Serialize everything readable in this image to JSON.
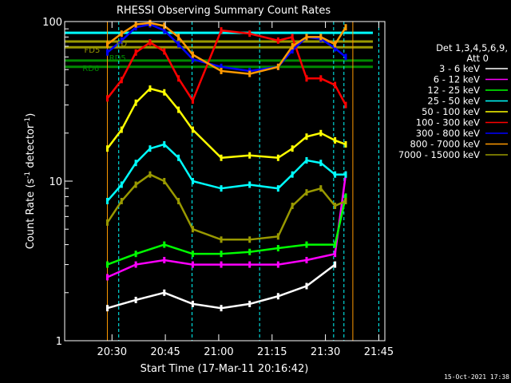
{
  "chart_data": {
    "type": "line",
    "title": "RHESSI Observing Summary Count Rates",
    "xlabel": "Start Time (17-Mar-11 20:16:42)",
    "ylabel_main": "Count Rate (s",
    "ylabel_sup1": "-1",
    "ylabel_mid": " detector",
    "ylabel_sup2": "-1",
    "ylabel_end": ")",
    "yscale": "log",
    "ylim": [
      1,
      100
    ],
    "xlim_minutes_after_start": [
      0,
      90
    ],
    "x_ticks": [
      {
        "label": "20:30",
        "minute": 13.3
      },
      {
        "label": "20:45",
        "minute": 28.3
      },
      {
        "label": "21:00",
        "minute": 43.3
      },
      {
        "label": "21:15",
        "minute": 58.3
      },
      {
        "label": "21:30",
        "minute": 73.3
      },
      {
        "label": "21:45",
        "minute": 88.3
      }
    ],
    "y_ticks": [
      {
        "label": "100",
        "value": 100
      },
      {
        "label": "10",
        "value": 10
      },
      {
        "label": "1",
        "value": 1
      }
    ],
    "legend_header": [
      "Det 1,3,4,5,6,9,",
      "Att 0"
    ],
    "series": [
      {
        "name": "3 - 6 keV",
        "color": "#ffffff",
        "x": [
          12,
          20,
          28,
          36,
          44,
          52,
          60,
          68,
          76
        ],
        "y": [
          1.6,
          1.8,
          2.0,
          1.7,
          1.6,
          1.7,
          1.9,
          2.2,
          3.0
        ]
      },
      {
        "name": "6 - 12 keV",
        "color": "#ff00ff",
        "x": [
          12,
          20,
          28,
          36,
          44,
          52,
          60,
          68,
          76,
          79
        ],
        "y": [
          2.5,
          3.0,
          3.2,
          3.0,
          3.0,
          3.0,
          3.0,
          3.2,
          3.5,
          11.0
        ]
      },
      {
        "name": "12 - 25 keV",
        "color": "#00ff00",
        "x": [
          12,
          20,
          28,
          36,
          44,
          52,
          60,
          68,
          76,
          79
        ],
        "y": [
          3.0,
          3.5,
          4.0,
          3.5,
          3.5,
          3.6,
          3.8,
          4.0,
          4.0,
          8.0
        ]
      },
      {
        "name": "25 - 50 keV",
        "color": "#00ffff",
        "x": [
          12,
          16,
          20,
          24,
          28,
          32,
          36,
          44,
          52,
          60,
          64,
          68,
          72,
          76,
          79
        ],
        "y": [
          7.5,
          9.5,
          13.0,
          16.0,
          17.0,
          14.0,
          10.0,
          9.0,
          9.5,
          9.0,
          11.0,
          13.5,
          13.0,
          11.0,
          11.0
        ]
      },
      {
        "name": "50 - 100 keV",
        "color": "#ffff00",
        "x": [
          12,
          16,
          20,
          24,
          28,
          32,
          36,
          44,
          52,
          60,
          64,
          68,
          72,
          76,
          79
        ],
        "y": [
          16.0,
          21.0,
          31.0,
          38.0,
          36.0,
          28.0,
          21.0,
          14.0,
          14.5,
          14.0,
          16.0,
          19.0,
          20.0,
          18.0,
          17.0
        ]
      },
      {
        "name": "100 - 300 keV",
        "color": "#ff0000",
        "x": [
          12,
          16,
          20,
          24,
          28,
          32,
          36,
          44,
          52,
          60,
          64,
          68,
          72,
          76,
          79
        ],
        "y": [
          33.0,
          43.0,
          64.0,
          74.0,
          65.0,
          44.0,
          32.0,
          88.0,
          84.0,
          76.0,
          80.0,
          44.0,
          44.0,
          40.0,
          30.0
        ]
      },
      {
        "name": "300 - 800 keV",
        "color": "#0000ff",
        "x": [
          12,
          16,
          20,
          24,
          28,
          32,
          36,
          44,
          52,
          60,
          64,
          68,
          72,
          76,
          79
        ],
        "y": [
          64.0,
          76.0,
          92.0,
          96.0,
          88.0,
          72.0,
          58.0,
          52.0,
          49.0,
          52.0,
          66.0,
          80.0,
          78.0,
          68.0,
          60.0
        ]
      },
      {
        "name": "800 - 7000 keV",
        "color": "#ff9900",
        "x": [
          12,
          16,
          20,
          24,
          28,
          32,
          36,
          44,
          52,
          60,
          64,
          68,
          72,
          76,
          79
        ],
        "y": [
          72.0,
          84.0,
          96.0,
          98.0,
          94.0,
          80.0,
          62.0,
          49.0,
          47.0,
          52.0,
          70.0,
          80.0,
          80.0,
          72.0,
          92.0
        ]
      },
      {
        "name": "7000 - 15000 keV",
        "color": "#999900",
        "x": [
          12,
          16,
          20,
          24,
          28,
          32,
          36,
          44,
          52,
          60,
          64,
          68,
          72,
          76,
          79
        ],
        "y": [
          5.5,
          7.5,
          9.5,
          11.0,
          10.0,
          7.5,
          5.0,
          4.3,
          4.3,
          4.5,
          7.0,
          8.5,
          9.0,
          7.0,
          7.5
        ]
      }
    ],
    "reference_lines": [
      {
        "color": "#00ffff",
        "y": 85
      },
      {
        "color": "#999900",
        "y": 69
      },
      {
        "color": "#999900",
        "y": 75
      },
      {
        "color": "#008800",
        "y": 57
      },
      {
        "color": "#008800",
        "y": 52
      }
    ],
    "vertical_markers": [
      {
        "color": "#ff9900",
        "minute": 12.0
      },
      {
        "color": "#ff9900",
        "minute": 81.0
      },
      {
        "color": "#00ffff",
        "minute": 15.2
      },
      {
        "color": "#00ffff",
        "minute": 35.8
      },
      {
        "color": "#00ffff",
        "minute": 54.8
      },
      {
        "color": "#00ffff",
        "minute": 75.6
      },
      {
        "color": "#00ffff",
        "minute": 78.5
      },
      {
        "color": "#00ffff",
        "minute": 88.3
      }
    ],
    "annotations": [
      {
        "text": "FD5",
        "color": "#999900",
        "minute": 5.5,
        "y": 64
      },
      {
        "text": "FD",
        "color": "#999900",
        "minute": 14.5,
        "y": 70
      },
      {
        "text": "RD5",
        "color": "#008800",
        "minute": 12.5,
        "y": 57
      },
      {
        "text": "RD6",
        "color": "#008800",
        "minute": 5.0,
        "y": 49
      }
    ]
  },
  "footer": {
    "timestamp": "15-Oct-2021 17:38"
  }
}
